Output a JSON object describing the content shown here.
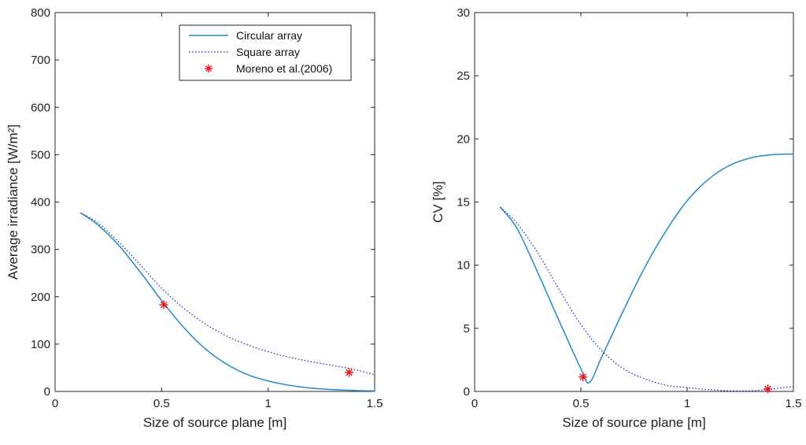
{
  "chart_data": [
    {
      "type": "line",
      "xlabel": "Size of source plane [m]",
      "ylabel": "Average irradiance [W/m²]",
      "xlim": [
        0,
        1.5
      ],
      "ylim": [
        0,
        800
      ],
      "xticks": [
        0,
        0.5,
        1,
        1.5
      ],
      "xtick_labels": [
        "0",
        "0.5",
        "1",
        "1.5"
      ],
      "yticks": [
        0,
        100,
        200,
        300,
        400,
        500,
        600,
        700,
        800
      ],
      "ytick_labels": [
        "0",
        "100",
        "200",
        "300",
        "400",
        "500",
        "600",
        "700",
        "800"
      ],
      "grid": false,
      "legend": {
        "placement": "top-right",
        "entries": [
          "Circular array",
          "Square array",
          "Moreno et al.(2006)"
        ]
      },
      "series": [
        {
          "name": "Circular array",
          "style": "solid",
          "color": "#1f8dc9",
          "x": [
            0.12,
            0.2,
            0.3,
            0.4,
            0.5,
            0.6,
            0.7,
            0.8,
            0.9,
            1.0,
            1.1,
            1.2,
            1.3,
            1.4,
            1.5
          ],
          "y": [
            377,
            352,
            308,
            252,
            192,
            137,
            92,
            59,
            36,
            22,
            13,
            7,
            4,
            2,
            1
          ]
        },
        {
          "name": "Square array",
          "style": "dotted",
          "color": "#1a1acc",
          "x": [
            0.12,
            0.2,
            0.3,
            0.4,
            0.5,
            0.6,
            0.7,
            0.8,
            0.9,
            1.0,
            1.1,
            1.2,
            1.3,
            1.4,
            1.5
          ],
          "y": [
            377,
            356,
            315,
            267,
            218,
            177,
            144,
            118,
            99,
            84,
            72,
            63,
            55,
            47,
            35
          ]
        },
        {
          "name": "Moreno et al.(2006)",
          "style": "marker",
          "marker": "asterisk",
          "color": "#e8141b",
          "x": [
            0.51,
            1.38
          ],
          "y": [
            183,
            40
          ]
        }
      ]
    },
    {
      "type": "line",
      "xlabel": "Size of source plane [m]",
      "ylabel": "CV [%]",
      "xlim": [
        0,
        1.5
      ],
      "ylim": [
        0,
        30
      ],
      "xticks": [
        0,
        0.5,
        1,
        1.5
      ],
      "xtick_labels": [
        "0",
        "0.5",
        "1",
        "1.5"
      ],
      "yticks": [
        0,
        5,
        10,
        15,
        20,
        25,
        30
      ],
      "ytick_labels": [
        "0",
        "5",
        "10",
        "15",
        "20",
        "25",
        "30"
      ],
      "grid": false,
      "series": [
        {
          "name": "Circular array",
          "style": "solid",
          "color": "#1f8dc9",
          "x": [
            0.12,
            0.2,
            0.3,
            0.4,
            0.5,
            0.54,
            0.6,
            0.7,
            0.8,
            0.9,
            1.0,
            1.1,
            1.2,
            1.3,
            1.4,
            1.5
          ],
          "y": [
            14.6,
            12.9,
            9.3,
            5.5,
            1.8,
            0.7,
            2.8,
            6.4,
            9.8,
            12.7,
            15.1,
            16.8,
            17.9,
            18.5,
            18.75,
            18.8
          ]
        },
        {
          "name": "Square array",
          "style": "dotted",
          "color": "#1a1acc",
          "x": [
            0.12,
            0.2,
            0.3,
            0.4,
            0.5,
            0.6,
            0.7,
            0.8,
            0.9,
            1.0,
            1.1,
            1.2,
            1.3,
            1.4,
            1.5
          ],
          "y": [
            14.6,
            13.3,
            10.9,
            8.0,
            5.3,
            3.2,
            1.8,
            1.0,
            0.5,
            0.3,
            0.15,
            0.05,
            0.05,
            0.2,
            0.4
          ]
        },
        {
          "name": "Moreno et al.(2006)",
          "style": "marker",
          "marker": "asterisk",
          "color": "#e8141b",
          "x": [
            0.51,
            1.38
          ],
          "y": [
            1.15,
            0.2
          ]
        }
      ]
    }
  ]
}
